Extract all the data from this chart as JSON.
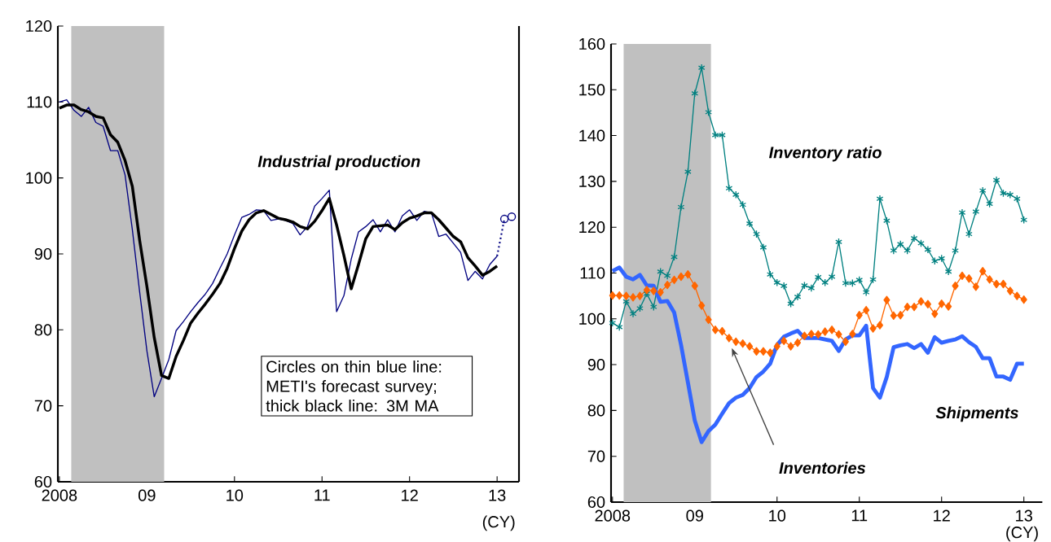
{
  "chart_data": [
    {
      "type": "line",
      "xlabel": "(CY)",
      "x": [
        "2008-01",
        "2008-02",
        "2008-03",
        "2008-04",
        "2008-05",
        "2008-06",
        "2008-07",
        "2008-08",
        "2008-09",
        "2008-10",
        "2008-11",
        "2008-12",
        "2009-01",
        "2009-02",
        "2009-03",
        "2009-04",
        "2009-05",
        "2009-06",
        "2009-07",
        "2009-08",
        "2009-09",
        "2009-10",
        "2009-11",
        "2009-12",
        "2010-01",
        "2010-02",
        "2010-03",
        "2010-04",
        "2010-05",
        "2010-06",
        "2010-07",
        "2010-08",
        "2010-09",
        "2010-10",
        "2010-11",
        "2010-12",
        "2011-01",
        "2011-02",
        "2011-03",
        "2011-04",
        "2011-05",
        "2011-06",
        "2011-07",
        "2011-08",
        "2011-09",
        "2011-10",
        "2011-11",
        "2011-12",
        "2012-01",
        "2012-02",
        "2012-03",
        "2012-04",
        "2012-05",
        "2012-06",
        "2012-07",
        "2012-08",
        "2012-09",
        "2012-10",
        "2012-11",
        "2012-12",
        "2013-01"
      ],
      "series": [
        {
          "color": "#000080",
          "values": [
            110.0,
            110.3,
            108.9,
            108.1,
            109.3,
            107.3,
            106.8,
            103.6,
            103.6,
            100.4,
            93.2,
            85.0,
            77.2,
            71.2,
            73.6,
            76.1,
            79.9,
            81.1,
            82.4,
            83.6,
            84.7,
            86.1,
            88.1,
            90.0,
            92.5,
            94.8,
            95.2,
            95.8,
            95.7,
            94.4,
            94.6,
            94.4,
            94.0,
            92.5,
            93.6,
            96.3,
            97.3,
            98.4,
            82.4,
            84.5,
            89.3,
            92.9,
            93.6,
            94.5,
            92.9,
            94.5,
            92.9,
            95.0,
            95.8,
            94.4,
            95.6,
            95.4,
            92.3,
            92.6,
            91.4,
            90.2,
            86.5,
            87.7,
            86.7,
            88.6,
            89.7
          ]
        },
        {
          "color": "#000000",
          "values": [
            109.2,
            109.6,
            109.6,
            109.0,
            108.7,
            108.1,
            107.9,
            105.7,
            104.7,
            102.3,
            98.9,
            91.8,
            85.7,
            79.0,
            74.0,
            73.6,
            76.5,
            78.6,
            80.9,
            82.2,
            83.4,
            84.7,
            86.1,
            88.1,
            90.7,
            93.0,
            94.5,
            95.4,
            95.7,
            95.2,
            94.7,
            94.5,
            94.2,
            93.6,
            93.3,
            94.3,
            95.7,
            97.3,
            93.8,
            89.8,
            85.4,
            88.6,
            92.0,
            93.6,
            93.7,
            93.8,
            93.2,
            94.1,
            94.7,
            95.0,
            95.4,
            95.4,
            94.5,
            93.4,
            92.3,
            91.6,
            89.5,
            88.4,
            87.2,
            87.7,
            88.4
          ]
        },
        {
          "type": "line",
          "line_style": "dotted",
          "color": "#000080",
          "x": [
            "2013-01",
            "2013-02"
          ],
          "values": [
            89.7,
            94.6
          ]
        },
        {
          "type": "scatter",
          "marker": "circle",
          "color": "#000080",
          "x": [
            "2013-02",
            "2013-03"
          ],
          "values": [
            94.6,
            94.9
          ]
        }
      ],
      "xlim": [
        "2007-12-25",
        "2013-04-01"
      ],
      "xticks": [
        {
          "value": "2008-01",
          "label": "2008"
        },
        {
          "value": "2009-01",
          "label": "09"
        },
        {
          "value": "2010-01",
          "label": "10"
        },
        {
          "value": "2011-01",
          "label": "11"
        },
        {
          "value": "2012-01",
          "label": "12"
        },
        {
          "value": "2013-01",
          "label": "13"
        }
      ],
      "ylim": [
        60,
        120
      ],
      "yticks": [
        60,
        70,
        80,
        90,
        100,
        110,
        120
      ],
      "bands": [
        {
          "axis": "x",
          "from": "2008-02-20",
          "to": "2009-03-12",
          "color": "#c0c0c0"
        }
      ],
      "annotations": [
        "Industrial production",
        "Circles on thin blue line: METI's forecast survey; thick black line: 3M MA"
      ]
    },
    {
      "type": "line",
      "xlabel": "(CY)",
      "x": [
        "2008-01",
        "2008-02",
        "2008-03",
        "2008-04",
        "2008-05",
        "2008-06",
        "2008-07",
        "2008-08",
        "2008-09",
        "2008-10",
        "2008-11",
        "2008-12",
        "2009-01",
        "2009-02",
        "2009-03",
        "2009-04",
        "2009-05",
        "2009-06",
        "2009-07",
        "2009-08",
        "2009-09",
        "2009-10",
        "2009-11",
        "2009-12",
        "2010-01",
        "2010-02",
        "2010-03",
        "2010-04",
        "2010-05",
        "2010-06",
        "2010-07",
        "2010-08",
        "2010-09",
        "2010-10",
        "2010-11",
        "2010-12",
        "2011-01",
        "2011-02",
        "2011-03",
        "2011-04",
        "2011-05",
        "2011-06",
        "2011-07",
        "2011-08",
        "2011-09",
        "2011-10",
        "2011-11",
        "2011-12",
        "2012-01",
        "2012-02",
        "2012-03",
        "2012-04",
        "2012-05",
        "2012-06",
        "2012-07",
        "2012-08",
        "2012-09",
        "2012-10",
        "2012-11",
        "2012-12",
        "2013-01"
      ],
      "series": [
        {
          "name": "Inventory ratio",
          "color": "#008080",
          "marker": "cross",
          "values": [
            99.1,
            98.2,
            103.8,
            101.1,
            102.3,
            105.5,
            102.6,
            110.3,
            109.4,
            113.5,
            124.4,
            132.1,
            149.2,
            154.8,
            145.1,
            140.1,
            140.1,
            128.5,
            127.1,
            124.9,
            120.8,
            118.5,
            115.6,
            109.7,
            107.9,
            107.2,
            103.3,
            104.8,
            107.3,
            106.7,
            109.1,
            107.9,
            109.2,
            116.8,
            107.8,
            107.8,
            108.5,
            105.8,
            108.6,
            126.2,
            121.4,
            114.9,
            116.3,
            114.9,
            117.6,
            116.5,
            115.1,
            112.6,
            113.2,
            110.3,
            114.9,
            123.2,
            118.5,
            123.4,
            128.0,
            125.1,
            130.3,
            127.4,
            127.1,
            126.2,
            121.6
          ]
        },
        {
          "name": "Inventories",
          "color": "#ff6600",
          "marker": "diamond",
          "values": [
            105.1,
            105.1,
            105.0,
            104.7,
            105.0,
            106.3,
            106.1,
            105.8,
            107.4,
            108.5,
            109.2,
            109.7,
            107.2,
            102.9,
            99.8,
            97.6,
            97.3,
            95.8,
            95.0,
            94.6,
            94.0,
            92.9,
            92.9,
            92.6,
            94.0,
            95.2,
            94.0,
            94.8,
            96.3,
            96.7,
            96.6,
            97.2,
            97.6,
            96.6,
            95.0,
            96.7,
            100.8,
            101.9,
            97.9,
            98.6,
            104.1,
            100.7,
            100.8,
            102.6,
            102.6,
            103.8,
            103.2,
            101.1,
            103.3,
            102.7,
            107.2,
            109.4,
            108.8,
            107.0,
            110.4,
            108.6,
            107.6,
            107.6,
            106.1,
            105.0,
            104.2
          ]
        },
        {
          "name": "Shipments",
          "color": "#3366ff",
          "values": [
            110.4,
            111.2,
            109.2,
            108.6,
            109.6,
            107.3,
            107.2,
            103.7,
            103.9,
            101.4,
            94.3,
            86.1,
            77.8,
            73.1,
            75.5,
            76.9,
            79.3,
            81.6,
            82.8,
            83.4,
            84.9,
            87.3,
            88.5,
            90.2,
            94.3,
            96.1,
            96.8,
            97.4,
            95.8,
            95.8,
            95.8,
            95.5,
            95.2,
            93.0,
            95.5,
            96.4,
            96.4,
            98.5,
            84.9,
            82.8,
            87.3,
            93.8,
            94.2,
            94.5,
            93.6,
            94.5,
            92.6,
            96.0,
            94.8,
            95.2,
            95.5,
            96.2,
            94.9,
            93.9,
            91.4,
            91.4,
            87.4,
            87.4,
            86.7,
            90.2,
            90.2
          ]
        }
      ],
      "xlim": [
        "2007-12-25",
        "2013-03-22"
      ],
      "xticks": [
        {
          "value": "2008-01",
          "label": "2008"
        },
        {
          "value": "2009-01",
          "label": "09"
        },
        {
          "value": "2010-01",
          "label": "10"
        },
        {
          "value": "2011-01",
          "label": "11"
        },
        {
          "value": "2012-01",
          "label": "12"
        },
        {
          "value": "2013-01",
          "label": "13"
        }
      ],
      "ylim": [
        60,
        160
      ],
      "yticks": [
        60,
        70,
        80,
        90,
        100,
        110,
        120,
        130,
        140,
        150,
        160
      ],
      "bands": [
        {
          "axis": "x",
          "from": "2008-02-20",
          "to": "2009-03-12",
          "color": "#c0c0c0"
        }
      ]
    }
  ]
}
